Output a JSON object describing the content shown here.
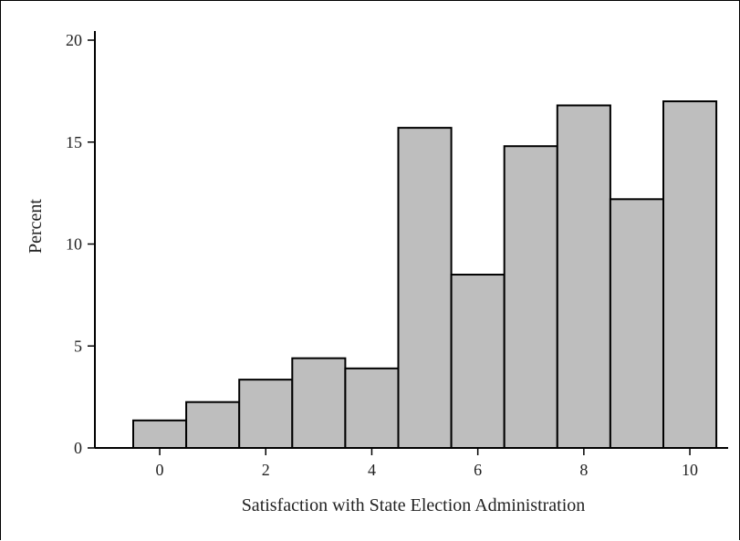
{
  "chart_data": {
    "type": "bar",
    "title": "",
    "xlabel": "Satisfaction with State Election Administration",
    "ylabel": "Percent",
    "x": [
      0,
      1,
      2,
      3,
      4,
      5,
      6,
      7,
      8,
      9,
      10
    ],
    "values": [
      1.35,
      2.25,
      3.35,
      4.4,
      3.9,
      15.7,
      8.5,
      14.8,
      16.8,
      12.2,
      17.0
    ],
    "xlim": [
      -0.5,
      10.5
    ],
    "ylim": [
      0,
      20
    ],
    "xticks": [
      0,
      2,
      4,
      6,
      8,
      10
    ],
    "yticks": [
      0,
      5,
      10,
      15,
      20
    ],
    "grid": false,
    "bar_color": "#bebebe",
    "edge_color": "#000000"
  }
}
